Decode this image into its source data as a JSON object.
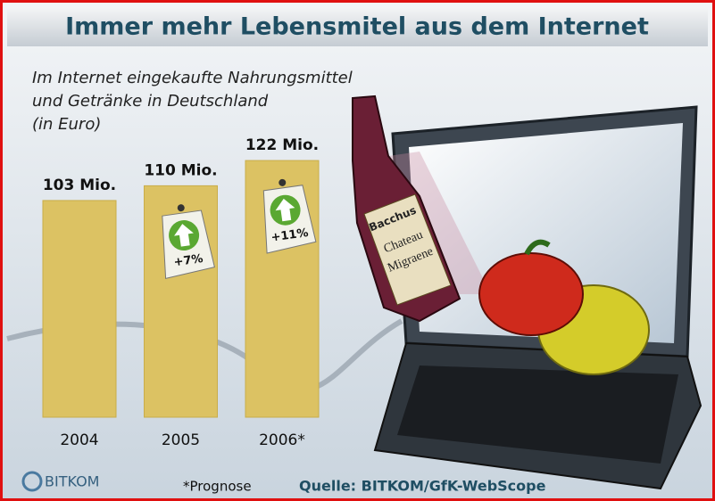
{
  "chart_data": {
    "type": "bar",
    "title": "Immer mehr Lebensmitel aus dem Internet",
    "subtitle": [
      "Im Internet eingekaufte Nahrungsmittel",
      "und Getränke in Deutschland",
      "(in Euro)"
    ],
    "categories": [
      "2004",
      "2005",
      "2006*"
    ],
    "values": [
      103,
      110,
      122
    ],
    "value_labels": [
      "103 Mio.",
      "110 Mio.",
      "122 Mio."
    ],
    "color": "#dcc263",
    "annotations": [
      "+7%",
      "+11%"
    ],
    "footnote": "*Prognose",
    "source": "Quelle: BITKOM/GfK-WebScope",
    "logo": "BITKOM",
    "bottle_label": [
      "Bacchus",
      "Chateau",
      "Migraene"
    ]
  }
}
